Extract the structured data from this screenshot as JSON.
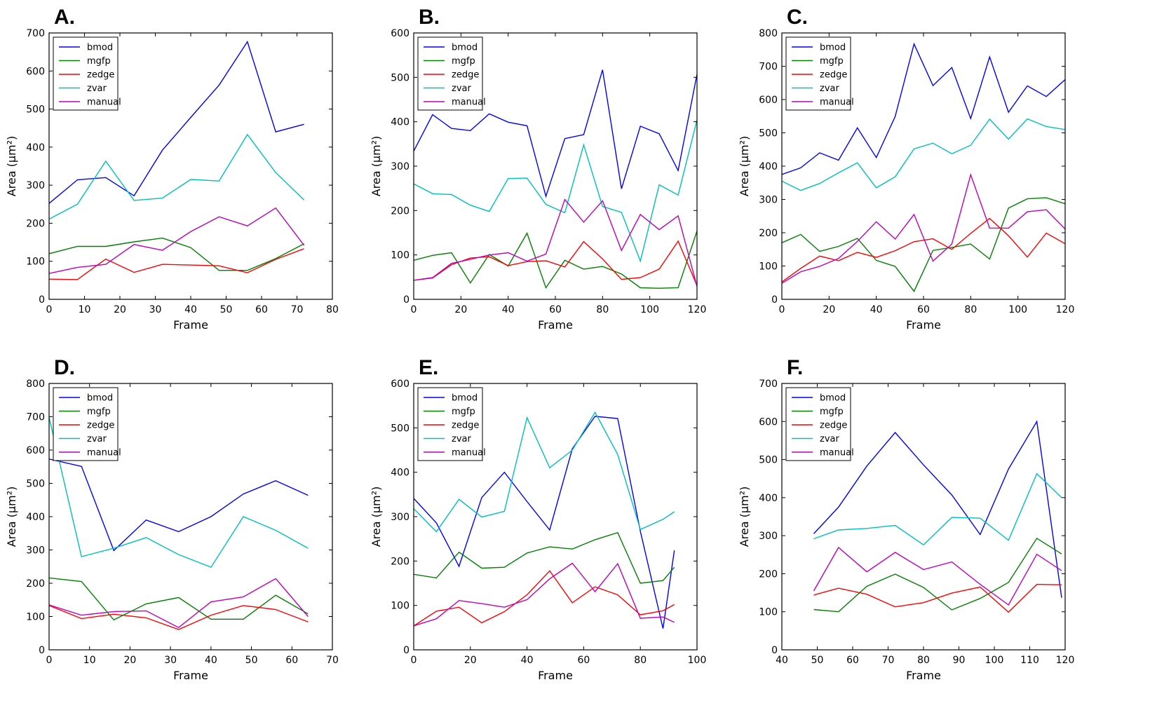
{
  "series_names": [
    "bmod",
    "mgfp",
    "zedge",
    "zvar",
    "manual"
  ],
  "colors": {
    "bmod": "#0000ff",
    "mgfp": "#008000",
    "zedge": "#ff0000",
    "zvar": "#00bfbf",
    "manual": "#bf00bf"
  },
  "chart_data": [
    {
      "type": "line",
      "panel_label": "A.",
      "xlabel": "Frame",
      "ylabel": "Area (μm²)",
      "xlim": [
        0,
        80
      ],
      "ylim": [
        0,
        700
      ],
      "xticks": [
        "0",
        "10",
        "20",
        "30",
        "40",
        "50",
        "60",
        "70",
        "80"
      ],
      "yticks": [
        "0",
        "100",
        "200",
        "300",
        "400",
        "500",
        "600",
        "700"
      ],
      "legend": "top-left",
      "x": [
        0,
        8,
        16,
        24,
        32,
        40,
        48,
        56,
        64,
        72
      ],
      "series": [
        {
          "name": "bmod",
          "values": [
            252,
            314,
            320,
            272,
            392,
            478,
            563,
            677,
            440,
            460
          ]
        },
        {
          "name": "mgfp",
          "values": [
            120,
            139,
            139,
            151,
            161,
            136,
            76,
            76,
            107,
            146
          ]
        },
        {
          "name": "zedge",
          "values": [
            53,
            52,
            106,
            71,
            92,
            90,
            88,
            70,
            105,
            133
          ]
        },
        {
          "name": "zvar",
          "values": [
            211,
            250,
            363,
            260,
            266,
            315,
            311,
            433,
            333,
            261
          ]
        },
        {
          "name": "manual",
          "values": [
            68,
            84,
            92,
            144,
            129,
            178,
            217,
            193,
            240,
            142
          ]
        }
      ]
    },
    {
      "type": "line",
      "panel_label": "B.",
      "xlabel": "Frame",
      "ylabel": "Area (μm²)",
      "xlim": [
        0,
        120
      ],
      "ylim": [
        0,
        600
      ],
      "xticks": [
        "0",
        "20",
        "40",
        "60",
        "80",
        "100",
        "120"
      ],
      "yticks": [
        "0",
        "100",
        "200",
        "300",
        "400",
        "500",
        "600"
      ],
      "legend": "top-left",
      "x": [
        0,
        8,
        16,
        24,
        32,
        40,
        48,
        56,
        64,
        72,
        80,
        88,
        96,
        104,
        112,
        120
      ],
      "series": [
        {
          "name": "bmod",
          "values": [
            334,
            416,
            385,
            380,
            418,
            399,
            391,
            232,
            362,
            371,
            517,
            249,
            390,
            373,
            290,
            507
          ]
        },
        {
          "name": "mgfp",
          "values": [
            88,
            99,
            105,
            37,
            101,
            75,
            149,
            26,
            88,
            68,
            74,
            57,
            26,
            25,
            26,
            154
          ]
        },
        {
          "name": "zedge",
          "values": [
            43,
            48,
            78,
            93,
            96,
            76,
            85,
            87,
            73,
            130,
            91,
            45,
            49,
            68,
            131,
            31
          ]
        },
        {
          "name": "zvar",
          "values": [
            260,
            238,
            236,
            212,
            198,
            272,
            273,
            214,
            195,
            348,
            209,
            196,
            86,
            258,
            235,
            404
          ]
        },
        {
          "name": "manual",
          "values": [
            43,
            49,
            81,
            90,
            100,
            105,
            86,
            102,
            225,
            174,
            222,
            110,
            191,
            157,
            188,
            29
          ]
        }
      ]
    },
    {
      "type": "line",
      "panel_label": "C.",
      "xlabel": "Frame",
      "ylabel": "Area (μm²)",
      "xlim": [
        0,
        120
      ],
      "ylim": [
        0,
        800
      ],
      "xticks": [
        "0",
        "20",
        "40",
        "60",
        "80",
        "100",
        "120"
      ],
      "yticks": [
        "0",
        "100",
        "200",
        "300",
        "400",
        "500",
        "600",
        "700",
        "800"
      ],
      "legend": "top-left",
      "x": [
        0,
        8,
        16,
        24,
        32,
        40,
        48,
        56,
        64,
        72,
        80,
        88,
        96,
        104,
        112,
        120
      ],
      "series": [
        {
          "name": "bmod",
          "values": [
            375,
            395,
            440,
            418,
            515,
            426,
            549,
            767,
            642,
            696,
            543,
            728,
            562,
            641,
            609,
            660
          ]
        },
        {
          "name": "mgfp",
          "values": [
            170,
            195,
            144,
            159,
            183,
            117,
            99,
            24,
            147,
            156,
            166,
            121,
            274,
            302,
            305,
            287
          ]
        },
        {
          "name": "zedge",
          "values": [
            52,
            93,
            130,
            116,
            141,
            126,
            146,
            173,
            182,
            150,
            198,
            243,
            191,
            127,
            199,
            167
          ]
        },
        {
          "name": "zvar",
          "values": [
            355,
            327,
            348,
            380,
            410,
            335,
            368,
            452,
            469,
            437,
            463,
            541,
            481,
            542,
            519,
            510
          ]
        },
        {
          "name": "manual",
          "values": [
            48,
            83,
            99,
            123,
            174,
            233,
            181,
            255,
            115,
            166,
            374,
            214,
            214,
            263,
            269,
            211
          ]
        }
      ]
    },
    {
      "type": "line",
      "panel_label": "D.",
      "xlabel": "Frame",
      "ylabel": "Area (μm²)",
      "xlim": [
        0,
        70
      ],
      "ylim": [
        0,
        800
      ],
      "xticks": [
        "0",
        "10",
        "20",
        "30",
        "40",
        "50",
        "60",
        "70"
      ],
      "yticks": [
        "0",
        "100",
        "200",
        "300",
        "400",
        "500",
        "600",
        "700",
        "800"
      ],
      "legend": "top-left",
      "x": [
        0,
        8,
        16,
        24,
        32,
        40,
        48,
        56,
        64
      ],
      "series": [
        {
          "name": "bmod",
          "values": [
            573,
            551,
            298,
            390,
            355,
            400,
            468,
            508,
            464
          ]
        },
        {
          "name": "mgfp",
          "values": [
            216,
            205,
            90,
            138,
            157,
            92,
            92,
            164,
            108
          ]
        },
        {
          "name": "zedge",
          "values": [
            133,
            94,
            107,
            96,
            61,
            104,
            133,
            121,
            84
          ]
        },
        {
          "name": "zvar",
          "values": [
            698,
            280,
            305,
            337,
            286,
            248,
            400,
            359,
            305
          ]
        },
        {
          "name": "manual",
          "values": [
            135,
            104,
            115,
            117,
            67,
            144,
            159,
            214,
            100
          ]
        }
      ]
    },
    {
      "type": "line",
      "panel_label": "E.",
      "xlabel": "Frame",
      "ylabel": "Area (μm²)",
      "xlim": [
        0,
        100
      ],
      "ylim": [
        0,
        600
      ],
      "xticks": [
        "0",
        "20",
        "40",
        "60",
        "80",
        "100"
      ],
      "yticks": [
        "0",
        "100",
        "200",
        "300",
        "400",
        "500",
        "600"
      ],
      "legend": "top-left",
      "x": [
        0,
        8,
        16,
        24,
        32,
        40,
        48,
        56,
        64,
        72,
        80,
        88,
        92
      ],
      "series": [
        {
          "name": "bmod",
          "values": [
            341,
            286,
            188,
            343,
            400,
            334,
            270,
            453,
            526,
            521,
            267,
            48,
            224
          ]
        },
        {
          "name": "mgfp",
          "values": [
            170,
            162,
            220,
            184,
            186,
            218,
            232,
            227,
            248,
            264,
            150,
            156,
            186
          ]
        },
        {
          "name": "zedge",
          "values": [
            54,
            87,
            96,
            61,
            86,
            124,
            178,
            106,
            142,
            124,
            79,
            88,
            102
          ]
        },
        {
          "name": "zvar",
          "values": [
            318,
            266,
            339,
            299,
            312,
            523,
            410,
            450,
            535,
            440,
            271,
            294,
            311
          ]
        },
        {
          "name": "manual",
          "values": [
            54,
            70,
            111,
            104,
            96,
            113,
            160,
            195,
            131,
            194,
            71,
            74,
            62
          ]
        }
      ]
    },
    {
      "type": "line",
      "panel_label": "F.",
      "xlabel": "Frame",
      "ylabel": "Area (μm²)",
      "xlim": [
        40,
        120
      ],
      "ylim": [
        0,
        700
      ],
      "xticks": [
        "40",
        "50",
        "60",
        "70",
        "80",
        "90",
        "100",
        "110",
        "120"
      ],
      "yticks": [
        "0",
        "100",
        "200",
        "300",
        "400",
        "500",
        "600",
        "700"
      ],
      "legend": "top-left",
      "x": [
        49,
        56,
        64,
        72,
        80,
        88,
        96,
        104,
        112,
        119
      ],
      "series": [
        {
          "name": "bmod",
          "values": [
            305,
            375,
            483,
            571,
            486,
            407,
            303,
            475,
            600,
            137
          ]
        },
        {
          "name": "mgfp",
          "values": [
            106,
            100,
            167,
            199,
            164,
            105,
            135,
            177,
            293,
            252
          ]
        },
        {
          "name": "zedge",
          "values": [
            144,
            162,
            146,
            113,
            124,
            149,
            165,
            99,
            172,
            171
          ]
        },
        {
          "name": "zvar",
          "values": [
            292,
            315,
            319,
            327,
            276,
            348,
            346,
            288,
            463,
            400
          ]
        },
        {
          "name": "manual",
          "values": [
            155,
            269,
            205,
            256,
            211,
            231,
            172,
            118,
            251,
            208
          ]
        }
      ]
    }
  ]
}
